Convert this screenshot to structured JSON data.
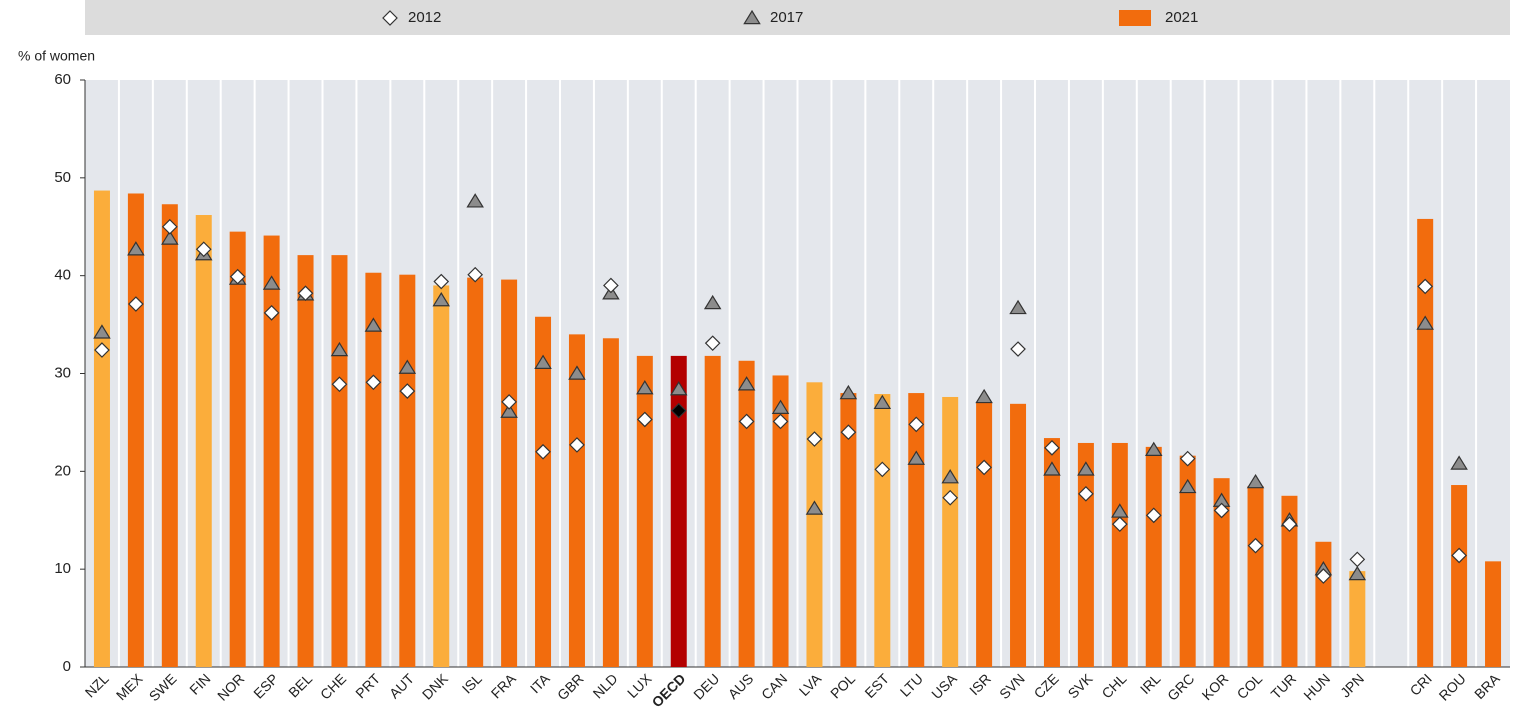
{
  "chart_data": {
    "type": "bar",
    "y_label": "% of women",
    "categories": [
      "NZL",
      "MEX",
      "SWE",
      "FIN",
      "NOR",
      "ESP",
      "BEL",
      "CHE",
      "PRT",
      "AUT",
      "DNK",
      "ISL",
      "FRA",
      "ITA",
      "GBR",
      "NLD",
      "LUX",
      "OECD",
      "DEU",
      "AUS",
      "CAN",
      "LVA",
      "POL",
      "EST",
      "LTU",
      "USA",
      "ISR",
      "SVN",
      "CZE",
      "SVK",
      "CHL",
      "IRL",
      "GRC",
      "KOR",
      "COL",
      "TUR",
      "HUN",
      "JPN",
      null,
      "CRI",
      "ROU",
      "BRA"
    ],
    "series": [
      {
        "name": "2012",
        "marker": "diamond",
        "color": "#ffffff",
        "colors": [
          "#ffffff",
          "#ffffff",
          "#ffffff",
          "#ffffff",
          "#ffffff",
          "#ffffff",
          "#ffffff",
          "#ffffff",
          "#ffffff",
          "#ffffff",
          "#ffffff",
          "#ffffff",
          "#ffffff",
          "#ffffff",
          "#ffffff",
          "#ffffff",
          "#ffffff",
          "#000000",
          "#ffffff",
          "#ffffff",
          "#ffffff",
          "#ffffff",
          "#ffffff",
          "#ffffff",
          "#ffffff",
          "#ffffff",
          "#ffffff",
          "#ffffff",
          "#ffffff",
          "#ffffff",
          "#ffffff",
          "#ffffff",
          "#ffffff",
          "#ffffff",
          "#ffffff",
          "#ffffff",
          "#ffffff",
          "#ffffff",
          null,
          "#ffffff",
          "#ffffff",
          null
        ],
        "values": [
          32.4,
          37.1,
          45.0,
          42.7,
          39.9,
          36.2,
          38.2,
          28.9,
          29.1,
          28.2,
          39.4,
          40.1,
          27.1,
          22.0,
          22.7,
          39.0,
          25.3,
          26.2,
          33.1,
          25.1,
          25.1,
          23.3,
          24.0,
          20.2,
          24.8,
          17.3,
          20.4,
          32.5,
          22.4,
          17.7,
          14.6,
          15.5,
          21.3,
          16.0,
          12.4,
          14.6,
          9.3,
          11.0,
          null,
          38.9,
          11.4,
          null
        ]
      },
      {
        "name": "2017",
        "marker": "triangle",
        "color": "#8c8c8c",
        "values": [
          34.2,
          42.7,
          43.8,
          42.2,
          39.7,
          39.2,
          38.1,
          32.4,
          34.9,
          30.6,
          37.5,
          47.6,
          26.1,
          31.1,
          30.0,
          38.2,
          28.5,
          28.4,
          37.2,
          28.9,
          26.5,
          16.2,
          28.0,
          27.0,
          21.3,
          19.4,
          27.6,
          36.7,
          20.2,
          20.2,
          15.9,
          22.2,
          18.4,
          17.0,
          18.9,
          15.0,
          10.0,
          9.5,
          null,
          35.1,
          20.8,
          null
        ]
      },
      {
        "name": "2021",
        "marker": "bar",
        "color": "#f26c0d",
        "colors": [
          "#fbad3b",
          "#f26c0d",
          "#f26c0d",
          "#fbad3b",
          "#f26c0d",
          "#f26c0d",
          "#f26c0d",
          "#f26c0d",
          "#f26c0d",
          "#f26c0d",
          "#fbad3b",
          "#f26c0d",
          "#f26c0d",
          "#f26c0d",
          "#f26c0d",
          "#f26c0d",
          "#f26c0d",
          "#b30000",
          "#f26c0d",
          "#f26c0d",
          "#f26c0d",
          "#fbad3b",
          "#f26c0d",
          "#fbad3b",
          "#f26c0d",
          "#fbad3b",
          "#f26c0d",
          "#f26c0d",
          "#f26c0d",
          "#f26c0d",
          "#f26c0d",
          "#f26c0d",
          "#f26c0d",
          "#f26c0d",
          "#f26c0d",
          "#f26c0d",
          "#f26c0d",
          "#fbad3b",
          null,
          "#f26c0d",
          "#f26c0d",
          "#f26c0d"
        ],
        "values": [
          48.7,
          48.4,
          47.3,
          46.2,
          44.5,
          44.1,
          42.1,
          42.1,
          40.3,
          40.1,
          39.0,
          39.8,
          39.6,
          35.8,
          34.0,
          33.6,
          31.8,
          31.8,
          31.8,
          31.3,
          29.8,
          29.1,
          28.0,
          27.9,
          28.0,
          27.6,
          27.0,
          26.9,
          23.4,
          22.9,
          22.9,
          22.5,
          21.6,
          19.3,
          18.5,
          17.5,
          12.8,
          9.8,
          null,
          45.8,
          18.6,
          10.8
        ]
      }
    ],
    "ylim": [
      0,
      60
    ],
    "yticks": [
      0,
      10,
      20,
      30,
      40,
      50,
      60
    ],
    "legend": "top"
  }
}
